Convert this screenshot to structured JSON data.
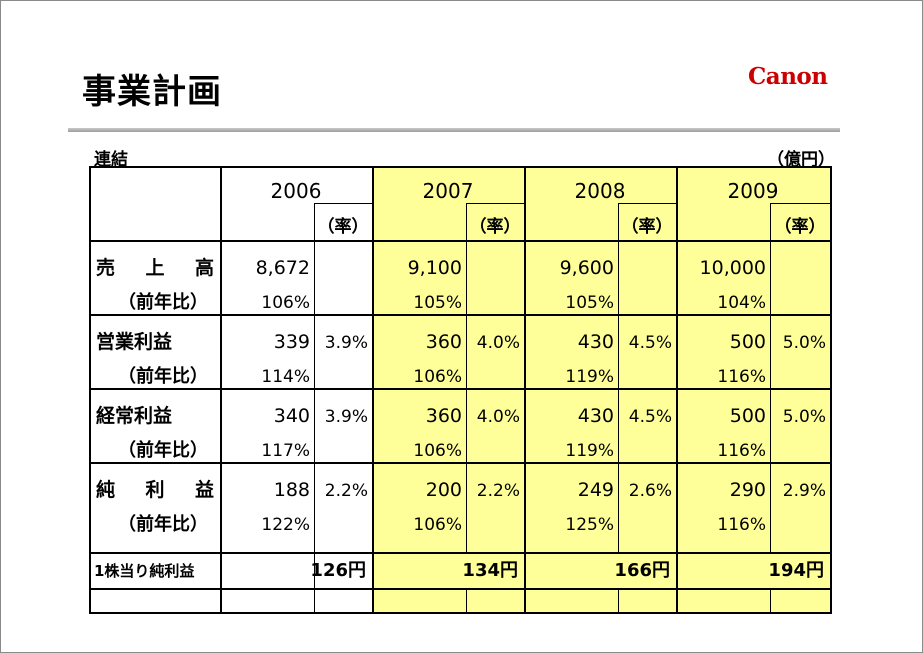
{
  "title": "事業計画",
  "logo_text": "Canon",
  "caption_left": "連結",
  "caption_right": "（億円）",
  "years": [
    "2006",
    "2007",
    "2008",
    "2009"
  ],
  "ratio_header": "（率）",
  "rows": [
    {
      "label": "売上高",
      "values": [
        "8,672",
        "9,100",
        "9,600",
        "10,000"
      ],
      "ratios": [
        "",
        "",
        "",
        ""
      ],
      "sub_label": "（前年比）",
      "yoy": [
        "106%",
        "105%",
        "105%",
        "104%"
      ]
    },
    {
      "label": "営業利益",
      "values": [
        "339",
        "360",
        "430",
        "500"
      ],
      "ratios": [
        "3.9%",
        "4.0%",
        "4.5%",
        "5.0%"
      ],
      "sub_label": "（前年比）",
      "yoy": [
        "114%",
        "106%",
        "119%",
        "116%"
      ]
    },
    {
      "label": "経常利益",
      "values": [
        "340",
        "360",
        "430",
        "500"
      ],
      "ratios": [
        "3.9%",
        "4.0%",
        "4.5%",
        "5.0%"
      ],
      "sub_label": "（前年比）",
      "yoy": [
        "117%",
        "106%",
        "119%",
        "116%"
      ]
    },
    {
      "label": "純利益",
      "values": [
        "188",
        "200",
        "249",
        "290"
      ],
      "ratios": [
        "2.2%",
        "2.2%",
        "2.6%",
        "2.9%"
      ],
      "sub_label": "（前年比）",
      "yoy": [
        "122%",
        "106%",
        "125%",
        "116%"
      ]
    }
  ],
  "eps": {
    "label": "1株当り純利益",
    "values": [
      "126円",
      "134円",
      "166円",
      "194円"
    ]
  },
  "colors": {
    "highlight": "#ffff99",
    "logo": "#cc0000",
    "rule": "#b0b0b0"
  }
}
